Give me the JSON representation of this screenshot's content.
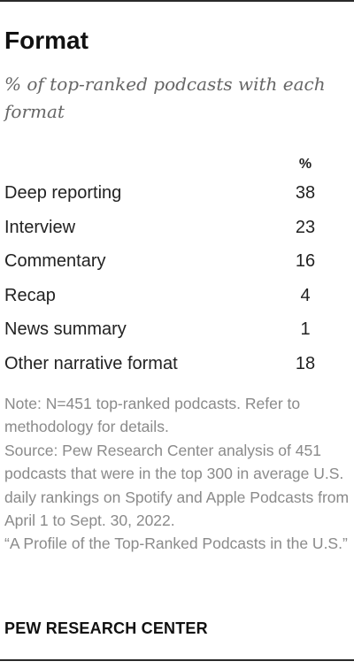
{
  "title": "Format",
  "subtitle": "% of top-ranked podcasts with each format",
  "chart_data": {
    "type": "table",
    "title": "Format",
    "subtitle": "% of top-ranked podcasts with each format",
    "columns": [
      "",
      "%"
    ],
    "value_header": "%",
    "categories": [
      "Deep reporting",
      "Interview",
      "Commentary",
      "Recap",
      "News summary",
      "Other narrative format"
    ],
    "values": [
      38,
      23,
      16,
      4,
      1,
      18
    ]
  },
  "note": "Note: N=451 top-ranked podcasts. Refer to methodology for details.",
  "source": "Source: Pew Research Center analysis of 451 podcasts that were in the top 300 in average U.S. daily rankings on Spotify and Apple Podcasts from April 1 to Sept. 30, 2022.",
  "report_title": "“A Profile of the Top-Ranked Podcasts in the U.S.”",
  "logo": "PEW RESEARCH CENTER"
}
